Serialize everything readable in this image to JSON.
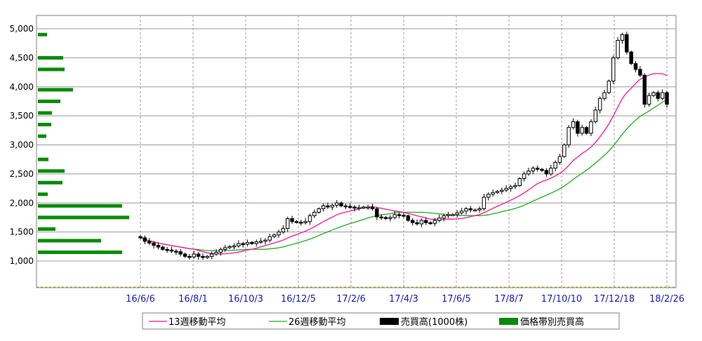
{
  "chart_data": {
    "type": "candlestick",
    "ylim": [
      500,
      5200
    ],
    "y_ticks": [
      "1,000",
      "1,500",
      "2,000",
      "2,500",
      "3,000",
      "3,500",
      "4,000",
      "4,500",
      "5,000"
    ],
    "y_tick_values": [
      1000,
      1500,
      2000,
      2500,
      3000,
      3500,
      4000,
      4500,
      5000
    ],
    "x_ticks": [
      "16/6/6",
      "16/8/1",
      "16/10/3",
      "16/12/5",
      "17/2/6",
      "17/4/3",
      "17/6/5",
      "17/8/7",
      "17/10/10",
      "17/12/18",
      "18/2/26"
    ],
    "grid": true,
    "legend": {
      "placement": "bottom",
      "items": [
        {
          "label": "13週移動平均",
          "type": "line",
          "color": "#ff1493"
        },
        {
          "label": "26週移動平均",
          "type": "line",
          "color": "#22aa22"
        },
        {
          "label": "売買高(1000株)",
          "type": "box",
          "color": "#000000"
        },
        {
          "label": "価格帯別売買高",
          "type": "box",
          "color": "#0a8a0a"
        }
      ]
    },
    "colors": {
      "up": "#ffffff",
      "down": "#000000",
      "ma13": "#ff1493",
      "ma26": "#22aa22",
      "volume_profile": "#0a8a0a",
      "grid": "#9a9a9a"
    },
    "weekly_close": [
      1400,
      1340,
      1310,
      1270,
      1240,
      1200,
      1190,
      1170,
      1160,
      1120,
      1080,
      1070,
      1120,
      1080,
      1060,
      1080,
      1120,
      1150,
      1200,
      1230,
      1250,
      1260,
      1300,
      1290,
      1320,
      1300,
      1330,
      1340,
      1360,
      1420,
      1450,
      1500,
      1560,
      1730,
      1680,
      1670,
      1660,
      1680,
      1780,
      1840,
      1900,
      1950,
      1930,
      1960,
      2000,
      1950,
      1940,
      1930,
      1910,
      1920,
      1930,
      1930,
      1900,
      1760,
      1750,
      1730,
      1750,
      1800,
      1790,
      1780,
      1700,
      1660,
      1640,
      1700,
      1660,
      1650,
      1700,
      1740,
      1780,
      1800,
      1800,
      1830,
      1860,
      1900,
      1880,
      1880,
      1900,
      2100,
      2150,
      2180,
      2200,
      2220,
      2250,
      2280,
      2300,
      2420,
      2500,
      2550,
      2600,
      2580,
      2560,
      2500,
      2600,
      2700,
      2800,
      3000,
      3300,
      3400,
      3200,
      3300,
      3200,
      3400,
      3600,
      3800,
      3900,
      4100,
      4500,
      4800,
      4900,
      4600,
      4400,
      4300,
      4200,
      3700,
      3850,
      3900,
      3800,
      3900,
      3700
    ],
    "volume_profile": [
      {
        "price": 1150,
        "volume": 120
      },
      {
        "price": 1350,
        "volume": 90
      },
      {
        "price": 1550,
        "volume": 25
      },
      {
        "price": 1750,
        "volume": 130
      },
      {
        "price": 1950,
        "volume": 120
      },
      {
        "price": 2150,
        "volume": 14
      },
      {
        "price": 2350,
        "volume": 35
      },
      {
        "price": 2550,
        "volume": 38
      },
      {
        "price": 2750,
        "volume": 15
      },
      {
        "price": 3150,
        "volume": 12
      },
      {
        "price": 3350,
        "volume": 19
      },
      {
        "price": 3550,
        "volume": 20
      },
      {
        "price": 3750,
        "volume": 32
      },
      {
        "price": 3950,
        "volume": 50
      },
      {
        "price": 4300,
        "volume": 38
      },
      {
        "price": 4500,
        "volume": 36
      },
      {
        "price": 4900,
        "volume": 13
      }
    ]
  }
}
